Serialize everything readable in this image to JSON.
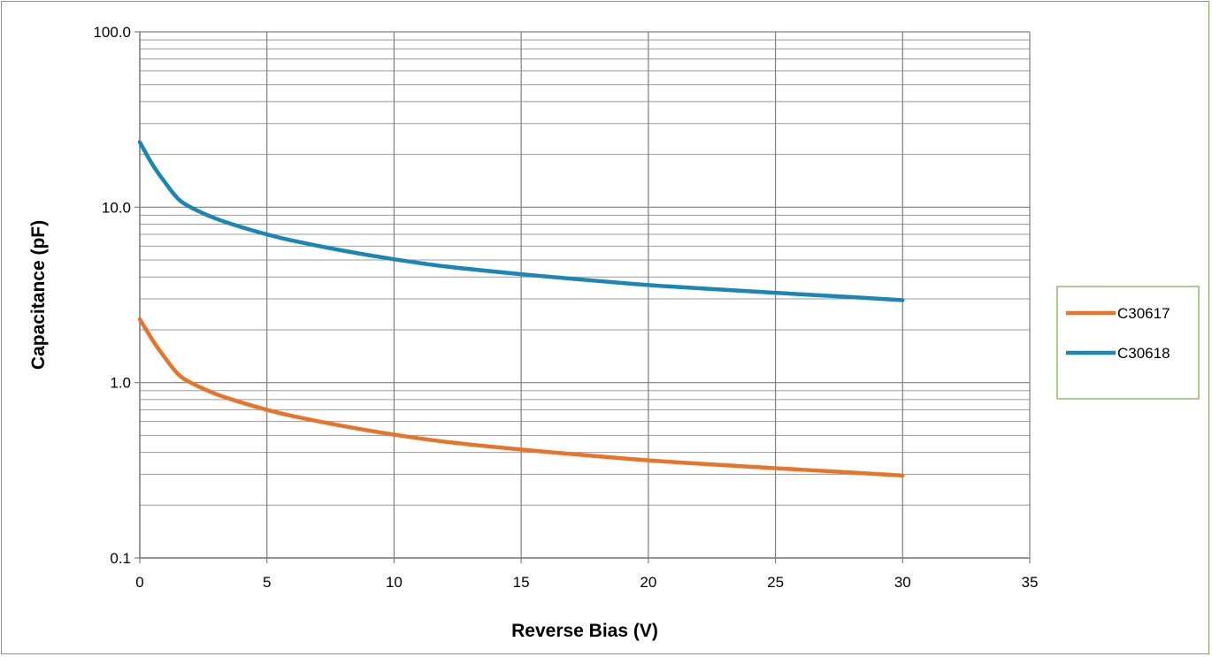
{
  "chart_data": {
    "type": "line",
    "title": "",
    "xlabel": "Reverse Bias (V)",
    "ylabel": "Capacitance (pF)",
    "xlim": [
      0,
      35
    ],
    "ylim": [
      0.1,
      100
    ],
    "y_scale": "log",
    "x_ticks": [
      "0",
      "5",
      "10",
      "15",
      "20",
      "25",
      "30",
      "35"
    ],
    "y_ticks": [
      "0.1",
      "1.0",
      "10.0",
      "100.0"
    ],
    "grid": true,
    "legend_position": "right",
    "series": [
      {
        "name": "C30617",
        "color": "#e8742a",
        "x": [
          0,
          0.5,
          1,
          1.5,
          2,
          3,
          4,
          5,
          6,
          8,
          10,
          12,
          15,
          18,
          20,
          22,
          25,
          28,
          30
        ],
        "y": [
          2.3,
          1.75,
          1.38,
          1.12,
          1.0,
          0.86,
          0.77,
          0.7,
          0.645,
          0.565,
          0.505,
          0.46,
          0.415,
          0.38,
          0.36,
          0.345,
          0.325,
          0.307,
          0.295
        ]
      },
      {
        "name": "C30618",
        "color": "#1a86b5",
        "x": [
          0,
          0.5,
          1,
          1.5,
          2,
          3,
          4,
          5,
          6,
          8,
          10,
          12,
          15,
          18,
          20,
          22,
          25,
          28,
          30
        ],
        "y": [
          23.5,
          17.5,
          13.8,
          11.2,
          10.0,
          8.6,
          7.7,
          7.0,
          6.45,
          5.65,
          5.05,
          4.6,
          4.15,
          3.8,
          3.6,
          3.45,
          3.25,
          3.07,
          2.95
        ]
      }
    ]
  }
}
